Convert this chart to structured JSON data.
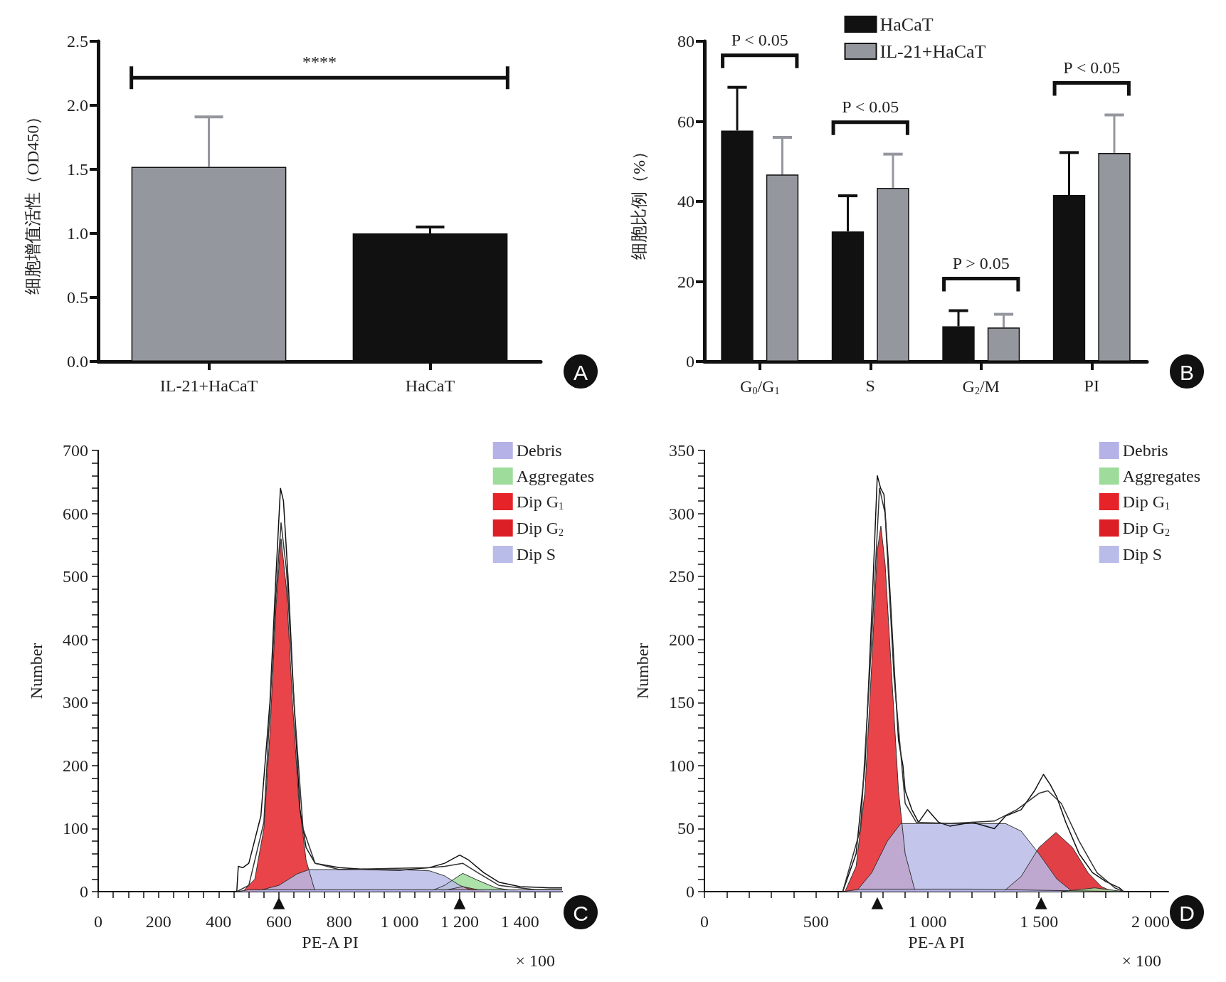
{
  "chart_data": [
    {
      "type": "bar",
      "ylabel": "细胞增值活性（OD450）",
      "categories": [
        "IL-21+HaCaT",
        "HaCaT"
      ],
      "series": [
        {
          "values": [
            1.52,
            1.0
          ],
          "colors": [
            "#95979e",
            "#111111"
          ],
          "errors": [
            [
              1.52,
              1.91
            ],
            [
              1.0,
              1.05
            ]
          ]
        }
      ],
      "ylim": [
        0,
        2.5
      ],
      "yticks": [
        {
          "value": 0,
          "label": "0.0"
        },
        0.5,
        {
          "value": 1,
          "label": "1.0"
        },
        1.5,
        {
          "value": 2,
          "label": "2.0"
        },
        2.5
      ],
      "annotations": [
        "****",
        "A"
      ]
    },
    {
      "type": "bar",
      "ylabel": "细胞比例（%）",
      "categories": [
        "G$_{0}$/G$_{1}$",
        "S",
        "G$_{2}$/M",
        "PI"
      ],
      "ylim": [
        0,
        80
      ],
      "yticks": [
        0,
        20,
        40,
        60,
        80
      ],
      "legend": "top",
      "series": [
        {
          "name": "HaCaT",
          "color": "#111111",
          "values": [
            57.7,
            32.5,
            8.8,
            41.6
          ],
          "errors": [
            [
              57.7,
              68.5
            ],
            [
              32.5,
              41.4
            ],
            [
              8.8,
              12.7
            ],
            [
              41.6,
              52.2
            ]
          ]
        },
        {
          "name": "IL-21+HaCaT",
          "color": "#95979e",
          "values": [
            46.7,
            43.4,
            8.5,
            52.1
          ],
          "errors": [
            [
              46.7,
              56
            ],
            [
              43.4,
              51.8
            ],
            [
              8.5,
              11.8
            ],
            [
              52.1,
              61.6
            ]
          ]
        }
      ],
      "annotations": [
        "P < 0.05",
        "P < 0.05",
        "P > 0.05",
        "P < 0.05",
        "B"
      ]
    },
    {
      "type": "area",
      "xlabel": "PE-A PI",
      "ylabel": "Number",
      "legend": "top right",
      "marker": "none",
      "xlim": [
        0,
        1540
      ],
      "ylim": [
        0,
        700
      ],
      "xticks": [
        0,
        {
          "value": 50,
          "label": null
        },
        {
          "value": 100,
          "label": null
        },
        {
          "value": 150,
          "label": null
        },
        200,
        {
          "value": 250,
          "label": null
        },
        {
          "value": 300,
          "label": null
        },
        {
          "value": 350,
          "label": null
        },
        400,
        {
          "value": 450,
          "label": null
        },
        {
          "value": 500,
          "label": null
        },
        {
          "value": 550,
          "label": null
        },
        600,
        {
          "value": 650,
          "label": null
        },
        {
          "value": 700,
          "label": null
        },
        {
          "value": 750,
          "label": null
        },
        800,
        {
          "value": 850,
          "label": null
        },
        {
          "value": 900,
          "label": null
        },
        {
          "value": 950,
          "label": null
        },
        {
          "value": 1000,
          "label": "1 000"
        },
        {
          "value": 1050,
          "label": null
        },
        {
          "value": 1100,
          "label": null
        },
        {
          "value": 1150,
          "label": null
        },
        {
          "value": 1200,
          "label": "1 200"
        },
        {
          "value": 1250,
          "label": null
        },
        {
          "value": 1300,
          "label": null
        },
        {
          "value": 1350,
          "label": null
        },
        {
          "value": 1400,
          "label": "1 400"
        },
        {
          "value": 1450,
          "label": null
        },
        {
          "value": 1500,
          "label": null
        }
      ],
      "yticks": [
        0,
        {
          "value": 20,
          "label": null
        },
        {
          "value": 40,
          "label": null
        },
        {
          "value": 60,
          "label": null
        },
        {
          "value": 80,
          "label": null
        },
        100,
        {
          "value": 120,
          "label": null
        },
        {
          "value": 140,
          "label": null
        },
        {
          "value": 160,
          "label": null
        },
        {
          "value": 180,
          "label": null
        },
        200,
        {
          "value": 220,
          "label": null
        },
        {
          "value": 240,
          "label": null
        },
        {
          "value": 260,
          "label": null
        },
        {
          "value": 280,
          "label": null
        },
        300,
        {
          "value": 320,
          "label": null
        },
        {
          "value": 340,
          "label": null
        },
        {
          "value": 360,
          "label": null
        },
        {
          "value": 380,
          "label": null
        },
        400,
        {
          "value": 420,
          "label": null
        },
        {
          "value": 440,
          "label": null
        },
        {
          "value": 460,
          "label": null
        },
        {
          "value": 480,
          "label": null
        },
        500,
        {
          "value": 520,
          "label": null
        },
        {
          "value": 540,
          "label": null
        },
        {
          "value": 560,
          "label": null
        },
        {
          "value": 580,
          "label": null
        },
        600,
        {
          "value": 620,
          "label": null
        },
        {
          "value": 640,
          "label": null
        },
        {
          "value": 660,
          "label": null
        },
        {
          "value": 680,
          "label": null
        },
        700
      ],
      "series": [
        {
          "name": "Debris",
          "color": "#b4b2e6",
          "x": [
            460,
            500,
            800,
            1200,
            1540
          ],
          "values": [
            0,
            3,
            3,
            3,
            3
          ]
        },
        {
          "name": "Aggregates",
          "color": "#9ddc9a",
          "x": [
            1100,
            1150,
            1210,
            1260,
            1320,
            1400
          ],
          "values": [
            0,
            10,
            29,
            18,
            6,
            0
          ]
        },
        {
          "name": "Dip G$_{1}$",
          "color": "#e52329",
          "x": [
            480,
            520,
            550,
            570,
            590,
            607,
            625,
            645,
            665,
            690,
            720
          ],
          "values": [
            0,
            20,
            100,
            250,
            450,
            560,
            480,
            300,
            150,
            50,
            0
          ]
        },
        {
          "name": "Dip G$_{2}$",
          "color": "#dc1f27",
          "x": [
            1130,
            1210,
            1290
          ],
          "values": [
            0,
            8,
            0
          ]
        },
        {
          "name": "Dip S",
          "color": "#b9bbe8",
          "x": [
            520,
            600,
            660,
            700,
            1000,
            1100,
            1150,
            1200,
            1250
          ],
          "values": [
            0,
            10,
            28,
            35,
            35,
            33,
            25,
            10,
            0
          ]
        },
        {
          "type": "line",
          "color": "#111111",
          "x": [
            0,
            460,
            465,
            480,
            500,
            540,
            570,
            590,
            605,
            615,
            630,
            650,
            670,
            690,
            720,
            800,
            900,
            1000,
            1100,
            1150,
            1200,
            1230,
            1280,
            1330,
            1400,
            1500,
            1540
          ],
          "values": [
            0,
            0,
            40,
            38,
            45,
            120,
            300,
            500,
            640,
            620,
            500,
            300,
            130,
            70,
            45,
            38,
            35,
            34,
            38,
            45,
            58,
            50,
            30,
            15,
            8,
            6,
            6
          ]
        },
        {
          "type": "line",
          "color": "#333333",
          "x": [
            460,
            500,
            550,
            590,
            607,
            625,
            650,
            680,
            720,
            800,
            1100,
            1150,
            1210,
            1260,
            1330,
            1450,
            1540
          ],
          "values": [
            0,
            10,
            110,
            470,
            585,
            510,
            300,
            100,
            45,
            35,
            38,
            40,
            45,
            30,
            10,
            3,
            3
          ]
        }
      ],
      "annotations": [
        "× 100",
        "C",
        {
          "text": "▲",
          "x": 600,
          "y": 0
        },
        {
          "text": "▲",
          "x": 1200,
          "y": 0
        }
      ]
    },
    {
      "type": "area",
      "xlabel": "PE-A PI",
      "ylabel": "Number",
      "legend": "top right",
      "marker": "none",
      "xlim": [
        0,
        2080
      ],
      "ylim": [
        0,
        350
      ],
      "xticks": [
        0,
        {
          "value": 100,
          "label": null
        },
        {
          "value": 200,
          "label": null
        },
        {
          "value": 300,
          "label": null
        },
        {
          "value": 400,
          "label": null
        },
        500,
        {
          "value": 600,
          "label": null
        },
        {
          "value": 700,
          "label": null
        },
        {
          "value": 800,
          "label": null
        },
        {
          "value": 900,
          "label": null
        },
        {
          "value": 1000,
          "label": "1 000"
        },
        {
          "value": 1100,
          "label": null
        },
        {
          "value": 1200,
          "label": null
        },
        {
          "value": 1300,
          "label": null
        },
        {
          "value": 1400,
          "label": null
        },
        {
          "value": 1500,
          "label": "1 500"
        },
        {
          "value": 1600,
          "label": null
        },
        {
          "value": 1700,
          "label": null
        },
        {
          "value": 1800,
          "label": null
        },
        {
          "value": 1900,
          "label": null
        },
        {
          "value": 2000,
          "label": "2 000"
        }
      ],
      "yticks": [
        0,
        {
          "value": 10,
          "label": null
        },
        {
          "value": 20,
          "label": null
        },
        {
          "value": 30,
          "label": null
        },
        {
          "value": 40,
          "label": null
        },
        50,
        {
          "value": 60,
          "label": null
        },
        {
          "value": 70,
          "label": null
        },
        {
          "value": 80,
          "label": null
        },
        {
          "value": 90,
          "label": null
        },
        100,
        {
          "value": 110,
          "label": null
        },
        {
          "value": 120,
          "label": null
        },
        {
          "value": 130,
          "label": null
        },
        {
          "value": 140,
          "label": null
        },
        150,
        {
          "value": 160,
          "label": null
        },
        {
          "value": 170,
          "label": null
        },
        {
          "value": 180,
          "label": null
        },
        {
          "value": 190,
          "label": null
        },
        200,
        {
          "value": 210,
          "label": null
        },
        {
          "value": 220,
          "label": null
        },
        {
          "value": 230,
          "label": null
        },
        {
          "value": 240,
          "label": null
        },
        250,
        {
          "value": 260,
          "label": null
        },
        {
          "value": 270,
          "label": null
        },
        {
          "value": 280,
          "label": null
        },
        {
          "value": 290,
          "label": null
        },
        300,
        {
          "value": 310,
          "label": null
        },
        {
          "value": 320,
          "label": null
        },
        {
          "value": 330,
          "label": null
        },
        {
          "value": 340,
          "label": null
        },
        350
      ],
      "series": [
        {
          "name": "Debris",
          "color": "#b4b2e6",
          "x": [
            620,
            700,
            1200,
            1880
          ],
          "values": [
            0,
            2,
            2,
            0
          ]
        },
        {
          "name": "Aggregates",
          "color": "#9ddc9a",
          "x": [
            1600,
            1750,
            1880
          ],
          "values": [
            0,
            3,
            0
          ]
        },
        {
          "name": "Dip G$_{1}$",
          "color": "#e52329",
          "x": [
            630,
            680,
            720,
            750,
            775,
            791,
            810,
            840,
            870,
            900,
            945
          ],
          "values": [
            0,
            20,
            80,
            180,
            270,
            290,
            260,
            170,
            80,
            30,
            0
          ]
        },
        {
          "name": "Dip G$_{2}$",
          "color": "#dc1f27",
          "x": [
            1340,
            1420,
            1500,
            1576,
            1650,
            1720,
            1780,
            1830
          ],
          "values": [
            0,
            12,
            35,
            47,
            35,
            15,
            4,
            0
          ]
        },
        {
          "name": "Dip S",
          "color": "#b9bbe8",
          "x": [
            680,
            750,
            820,
            880,
            1350,
            1420,
            1500,
            1580,
            1650
          ],
          "values": [
            0,
            15,
            40,
            54,
            54,
            48,
            30,
            10,
            0
          ]
        },
        {
          "type": "line",
          "color": "#111111",
          "x": [
            0,
            620,
            640,
            680,
            720,
            750,
            775,
            790,
            805,
            825,
            850,
            870,
            890,
            900,
            930,
            960,
            1000,
            1050,
            1100,
            1200,
            1300,
            1350,
            1420,
            1480,
            1520,
            1550,
            1580,
            1620,
            1680,
            1740,
            1800,
            1860,
            1880
          ],
          "values": [
            0,
            0,
            10,
            30,
            100,
            220,
            330,
            320,
            315,
            260,
            180,
            120,
            100,
            80,
            65,
            55,
            65,
            55,
            52,
            55,
            50,
            60,
            65,
            80,
            93,
            85,
            75,
            55,
            30,
            15,
            8,
            3,
            0
          ]
        },
        {
          "type": "line",
          "color": "#333333",
          "x": [
            620,
            700,
            750,
            785,
            810,
            850,
            900,
            950,
            1100,
            1300,
            1400,
            1500,
            1540,
            1600,
            1680,
            1760,
            1840,
            1880
          ],
          "values": [
            0,
            50,
            200,
            320,
            300,
            170,
            70,
            55,
            54,
            56,
            65,
            78,
            80,
            70,
            40,
            15,
            3,
            0
          ]
        }
      ],
      "annotations": [
        "× 100",
        "D",
        {
          "text": "▲",
          "x": 775,
          "y": 0
        },
        {
          "text": "▲",
          "x": 1510,
          "y": 0
        }
      ]
    }
  ]
}
